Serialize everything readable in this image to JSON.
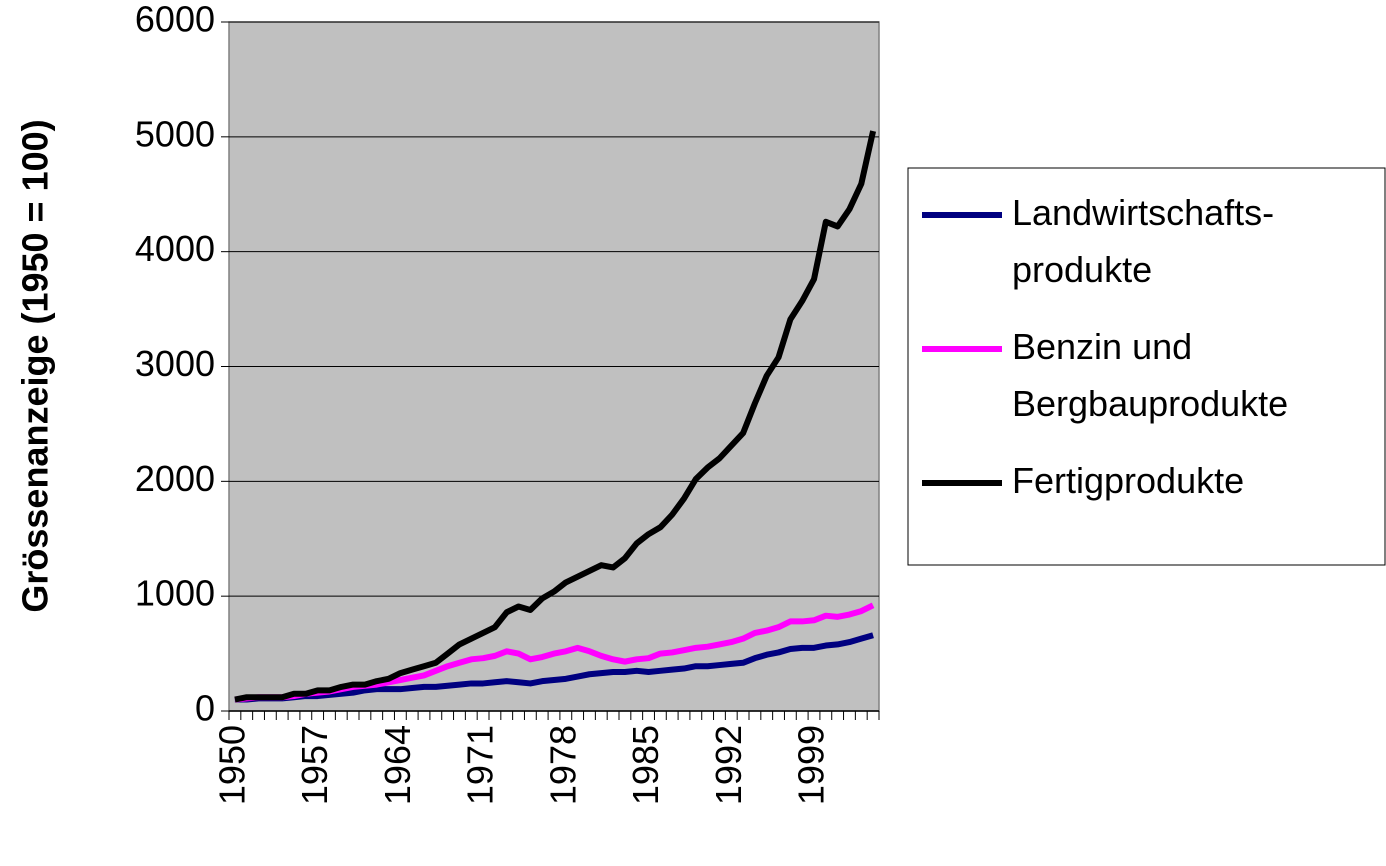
{
  "chart_data": {
    "type": "line",
    "y_label": "Grössenanzeige (1950 = 100)",
    "categories": [
      "1950",
      null,
      null,
      null,
      null,
      null,
      null,
      "1957",
      null,
      null,
      null,
      null,
      null,
      null,
      "1964",
      null,
      null,
      null,
      null,
      null,
      null,
      "1971",
      null,
      null,
      null,
      null,
      null,
      null,
      "1978",
      null,
      null,
      null,
      null,
      null,
      null,
      "1985",
      null,
      null,
      null,
      null,
      null,
      null,
      "1992",
      null,
      null,
      null,
      null,
      null,
      null,
      "1999",
      null,
      null,
      null,
      null,
      null
    ],
    "series": [
      {
        "name": "Landwirtschafts-produkte",
        "legend_lines": [
          "Landwirtschafts-",
          "produkte"
        ],
        "color": "#000080",
        "values": [
          100,
          100,
          110,
          110,
          110,
          120,
          130,
          130,
          140,
          150,
          160,
          180,
          190,
          190,
          190,
          200,
          210,
          210,
          220,
          230,
          240,
          240,
          250,
          260,
          250,
          240,
          260,
          270,
          280,
          300,
          320,
          330,
          340,
          340,
          350,
          340,
          350,
          360,
          370,
          390,
          390,
          400,
          410,
          420,
          460,
          490,
          510,
          540,
          550,
          550,
          570,
          580,
          600,
          630,
          660
        ]
      },
      {
        "name": "Benzin und Bergbauprodukte",
        "legend_lines": [
          "Benzin und",
          "Bergbauprodukte"
        ],
        "color": "#ff00ff",
        "values": [
          100,
          110,
          120,
          120,
          120,
          130,
          150,
          160,
          170,
          190,
          210,
          220,
          230,
          250,
          270,
          290,
          310,
          350,
          390,
          420,
          450,
          460,
          480,
          520,
          500,
          450,
          470,
          500,
          520,
          550,
          520,
          480,
          450,
          430,
          450,
          460,
          500,
          510,
          530,
          550,
          560,
          580,
          600,
          630,
          680,
          700,
          730,
          780,
          780,
          790,
          830,
          820,
          840,
          870,
          920
        ]
      },
      {
        "name": "Fertigprodukte",
        "legend_lines": [
          "Fertigprodukte"
        ],
        "color": "#000000",
        "values": [
          100,
          120,
          120,
          120,
          120,
          150,
          150,
          180,
          180,
          210,
          230,
          230,
          260,
          280,
          330,
          360,
          390,
          420,
          500,
          580,
          630,
          680,
          730,
          860,
          910,
          880,
          980,
          1040,
          1120,
          1170,
          1220,
          1270,
          1250,
          1330,
          1460,
          1540,
          1600,
          1710,
          1850,
          2020,
          2120,
          2200,
          2310,
          2420,
          2680,
          2920,
          3080,
          3410,
          3570,
          3760,
          4260,
          4220,
          4370,
          4590,
          5050
        ]
      }
    ],
    "ylim": [
      0,
      6000
    ],
    "yticks": [
      0,
      1000,
      2000,
      3000,
      4000,
      5000,
      6000
    ],
    "grid": true,
    "plot_background": "#c0c0c0",
    "legend": "right"
  }
}
